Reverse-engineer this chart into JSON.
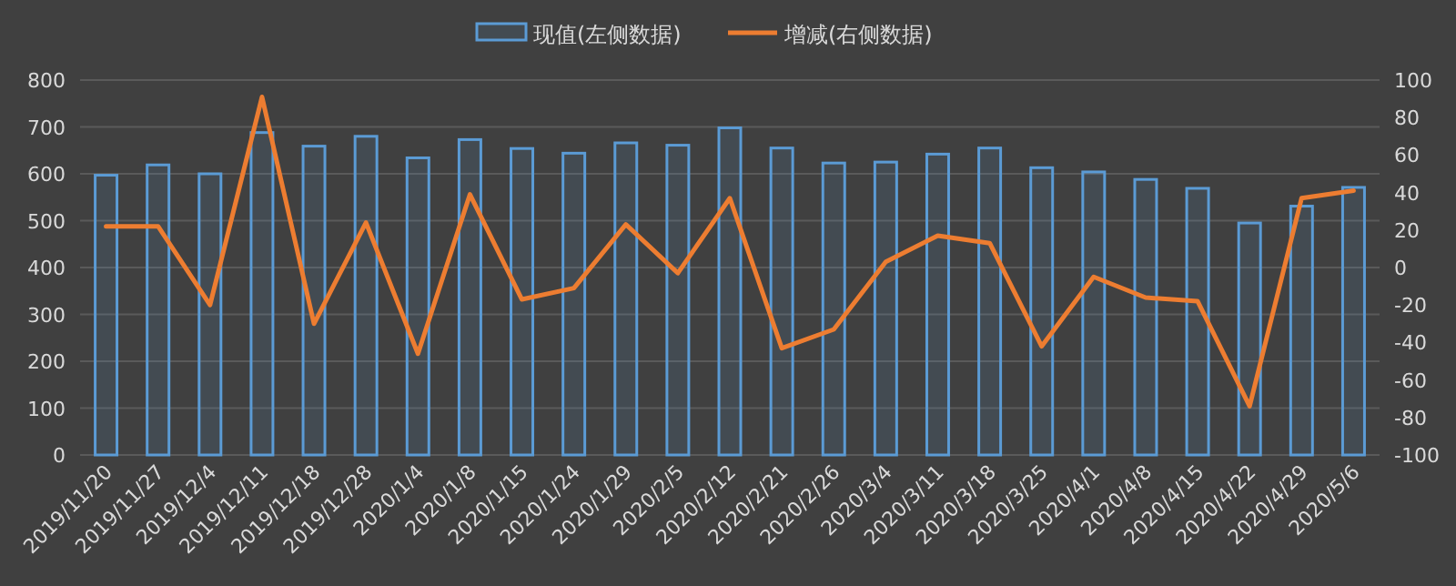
{
  "chart_data": {
    "type": "bar",
    "categories": [
      "2019/11/20",
      "2019/11/27",
      "2019/12/4",
      "2019/12/11",
      "2019/12/18",
      "2019/12/28",
      "2020/1/4",
      "2020/1/8",
      "2020/1/15",
      "2020/1/24",
      "2020/1/29",
      "2020/2/5",
      "2020/2/12",
      "2020/2/21",
      "2020/2/26",
      "2020/3/4",
      "2020/3/11",
      "2020/3/18",
      "2020/3/25",
      "2020/4/1",
      "2020/4/8",
      "2020/4/15",
      "2020/4/22",
      "2020/4/29",
      "2020/5/6"
    ],
    "series": [
      {
        "name": "现值(左侧数据)",
        "color": "#5b9bd5",
        "values": [
          597,
          619,
          600,
          688,
          659,
          680,
          634,
          673,
          654,
          644,
          666,
          661,
          698,
          655,
          623,
          625,
          642,
          655,
          613,
          604,
          588,
          569,
          495,
          531,
          571
        ]
      },
      {
        "name": "增减(右侧数据)",
        "type": "line",
        "axis": "y2",
        "color": "#ed7d31",
        "values": [
          22,
          22,
          -20,
          91,
          -30,
          24,
          -46,
          39,
          -17,
          -11,
          23,
          -3,
          37,
          -43,
          -33,
          3,
          17,
          13,
          -42,
          -5,
          -16,
          -18,
          -74,
          37,
          41
        ]
      }
    ],
    "ylim": [
      0,
      800
    ],
    "yticks": [
      0,
      100,
      200,
      300,
      400,
      500,
      600,
      700,
      800
    ],
    "y2lim": [
      -100,
      100
    ],
    "y2ticks": [
      -100,
      -80,
      -60,
      -40,
      -20,
      0,
      20,
      40,
      60,
      80,
      100
    ],
    "grid": "y",
    "legend": "top",
    "marker": "none",
    "line_style": "solid"
  }
}
